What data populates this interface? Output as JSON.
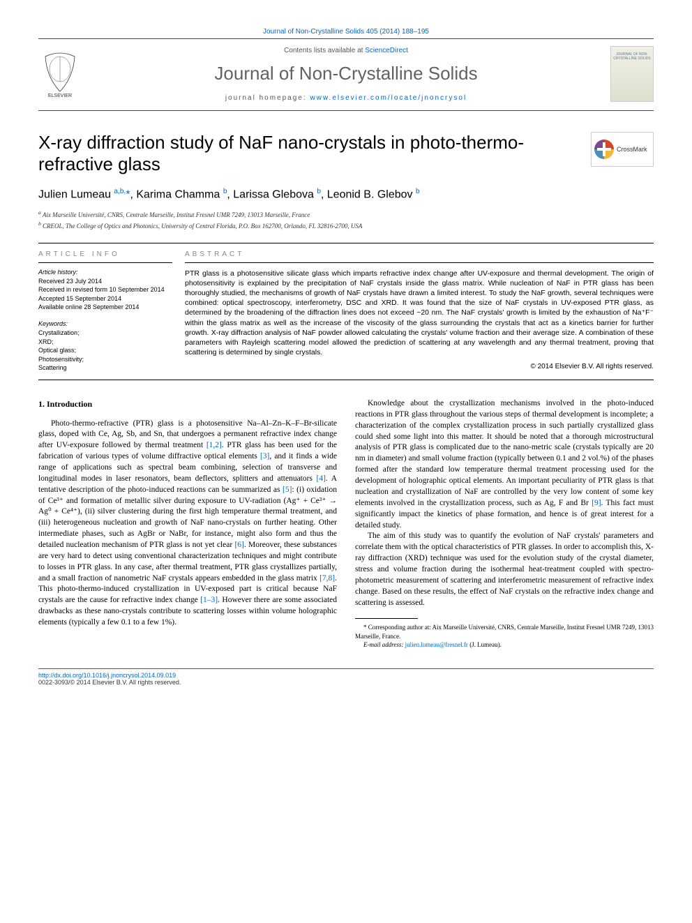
{
  "header": {
    "journal_ref": "Journal of Non-Crystalline Solids 405 (2014) 188–195",
    "contents_prefix": "Contents lists available at ",
    "sciencedirect": "ScienceDirect",
    "journal_name": "Journal of Non-Crystalline Solids",
    "homepage_prefix": "journal homepage: ",
    "homepage_url": "www.elsevier.com/locate/jnoncrysol",
    "cover_text": "JOURNAL OF NON-CRYSTALLINE SOLIDS"
  },
  "crossmark_label": "CrossMark",
  "title": "X-ray diffraction study of NaF nano-crystals in photo-thermo-refractive glass",
  "authors_html": "Julien Lumeau <sup>a,b,</sup><span class='author-link'>*</span>, Karima Chamma <sup>b</sup>, Larissa Glebova <sup>b</sup>, Leonid B. Glebov <sup>b</sup>",
  "affiliations": [
    "a Aix Marseille Université, CNRS, Centrale Marseille, Institut Fresnel UMR 7249, 13013 Marseille, France",
    "b CREOL, The College of Optics and Photonics, University of Central Florida, P.O. Box 162700, Orlando, FL 32816-2700, USA"
  ],
  "article_info": {
    "heading": "article info",
    "history_label": "Article history:",
    "history": [
      "Received 23 July 2014",
      "Received in revised form 10 September 2014",
      "Accepted 15 September 2014",
      "Available online 28 September 2014"
    ],
    "keywords_label": "Keywords:",
    "keywords": [
      "Crystallization;",
      "XRD;",
      "Optical glass;",
      "Photosensitivity;",
      "Scattering"
    ]
  },
  "abstract": {
    "heading": "abstract",
    "text": "PTR glass is a photosensitive silicate glass which imparts refractive index change after UV-exposure and thermal development. The origin of photosensitivity is explained by the precipitation of NaF crystals inside the glass matrix. While nucleation of NaF in PTR glass has been thoroughly studied, the mechanisms of growth of NaF crystals have drawn a limited interest. To study the NaF growth, several techniques were combined: optical spectroscopy, interferometry, DSC and XRD. It was found that the size of NaF crystals in UV-exposed PTR glass, as determined by the broadening of the diffraction lines does not exceed ~20 nm. The NaF crystals' growth is limited by the exhaustion of Na⁺F⁻ within the glass matrix as well as the increase of the viscosity of the glass surrounding the crystals that act as a kinetics barrier for further growth. X-ray diffraction analysis of NaF powder allowed calculating the crystals' volume fraction and their average size. A combination of these parameters with Rayleigh scattering model allowed the prediction of scattering at any wavelength and any thermal treatment, proving that scattering is determined by single crystals.",
    "copyright": "© 2014 Elsevier B.V. All rights reserved."
  },
  "body": {
    "section_heading": "1. Introduction",
    "p1_a": "Photo-thermo-refractive (PTR) glass is a photosensitive Na–Al–Zn–K–F–Br-silicate glass, doped with Ce, Ag, Sb, and Sn, that undergoes a permanent refractive index change after UV-exposure followed by thermal treatment ",
    "c1": "[1,2]",
    "p1_b": ". PTR glass has been used for the fabrication of various types of volume diffractive optical elements ",
    "c2": "[3]",
    "p1_c": ", and it finds a wide range of applications such as spectral beam combining, selection of transverse and longitudinal modes in laser resonators, beam deflectors, splitters and attenuators ",
    "c3": "[4]",
    "p1_d": ". A tentative description of the photo-induced reactions can be summarized as ",
    "c4": "[5]",
    "p1_e": ": (i) oxidation of Ce³⁺ and formation of metallic silver during exposure to UV-radiation (Ag⁺ + Ce³⁺ → Ag⁰ + Ce⁴⁺), (ii) silver clustering during the first high temperature thermal treatment, and (iii) heterogeneous nucleation and growth of NaF nano-crystals on further heating. Other intermediate phases, such as AgBr or NaBr, for instance, might also form and thus the detailed nucleation mechanism of PTR glass is not yet clear ",
    "c5": "[6]",
    "p1_f": ". Moreover, these substances are very hard to detect using conventional characterization techniques and might contribute to losses in PTR glass. In any case, after thermal treatment, PTR glass crystallizes partially, and a small fraction of nanometric NaF crystals appears embedded in the glass matrix ",
    "c6": "[7,8]",
    "p1_g": ". This photo-thermo-induced crystallization in UV-exposed part is critical because NaF crystals are",
    "p2_a": "the cause for refractive index change ",
    "c7": "[1–3]",
    "p2_b": ". However there are some associated drawbacks as these nano-crystals contribute to scattering losses within volume holographic elements (typically a few 0.1 to a few 1%).",
    "p3_a": "Knowledge about the crystallization mechanisms involved in the photo-induced reactions in PTR glass throughout the various steps of thermal development is incomplete; a characterization of the complex crystallization process in such partially crystallized glass could shed some light into this matter. It should be noted that a thorough microstructural analysis of PTR glass is complicated due to the nano-metric scale (crystals typically are 20 nm in diameter) and small volume fraction (typically between 0.1 and 2 vol.%) of the phases formed after the standard low temperature thermal treatment processing used for the development of holographic optical elements. An important peculiarity of PTR glass is that nucleation and crystallization of NaF are controlled by the very low content of some key elements involved in the crystallization process, such as Ag, F and Br ",
    "c8": "[9]",
    "p3_b": ". This fact must significantly impact the kinetics of phase formation, and hence is of great interest for a detailed study.",
    "p4": "The aim of this study was to quantify the evolution of NaF crystals' parameters and correlate them with the optical characteristics of PTR glasses. In order to accomplish this, X-ray diffraction (XRD) technique was used for the evolution study of the crystal diameter, stress and volume fraction during the isothermal heat-treatment coupled with spectro-photometric measurement of scattering and interferometric measurement of refractive index change. Based on these results, the effect of NaF crystals on the refractive index change and scattering is assessed."
  },
  "footnote": {
    "text": "* Corresponding author at: Aix Marseille Université, CNRS, Centrale Marseille, Institut Fresnel UMR 7249, 13013 Marseille, France.",
    "email_label": "E-mail address: ",
    "email": "julien.lumeau@fresnel.fr",
    "email_suffix": " (J. Lumeau)."
  },
  "footer": {
    "doi": "http://dx.doi.org/10.1016/j.jnoncrysol.2014.09.019",
    "issn": "0022-3093/© 2014 Elsevier B.V. All rights reserved."
  },
  "colors": {
    "link": "#0066cc",
    "heading_gray": "#888888",
    "journal_gray": "#626262",
    "elsevier_orange": "#ee7f00"
  }
}
